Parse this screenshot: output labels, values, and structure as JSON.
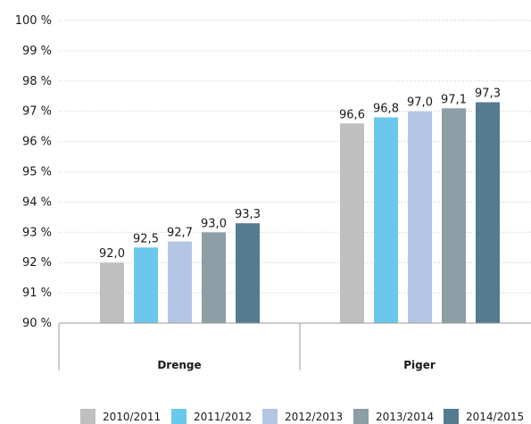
{
  "chart_data": {
    "type": "bar",
    "categories": [
      "Drenge",
      "Piger"
    ],
    "series": [
      {
        "name": "2010/2011",
        "values": [
          92.0,
          96.6
        ],
        "labels": [
          "92,0",
          "96,6"
        ],
        "color": "#bfbfbf"
      },
      {
        "name": "2011/2012",
        "values": [
          92.5,
          96.8
        ],
        "labels": [
          "92,5",
          "96,8"
        ],
        "color": "#69c8ec"
      },
      {
        "name": "2012/2013",
        "values": [
          92.7,
          97.0
        ],
        "labels": [
          "92,7",
          "97,0"
        ],
        "color": "#b3c6e3"
      },
      {
        "name": "2013/2014",
        "values": [
          93.0,
          97.1
        ],
        "labels": [
          "93,0",
          "97,1"
        ],
        "color": "#8c9ea6"
      },
      {
        "name": "2014/2015",
        "values": [
          93.3,
          97.3
        ],
        "labels": [
          "93,3",
          "97,3"
        ],
        "color": "#557b91"
      }
    ],
    "yticks": [
      "90 %",
      "91 %",
      "92 %",
      "93 %",
      "94 %",
      "95 %",
      "96 %",
      "97 %",
      "98 %",
      "99 %",
      "100 %"
    ],
    "ylim": [
      90,
      100
    ],
    "grid": true,
    "legend_position": "bottom"
  }
}
